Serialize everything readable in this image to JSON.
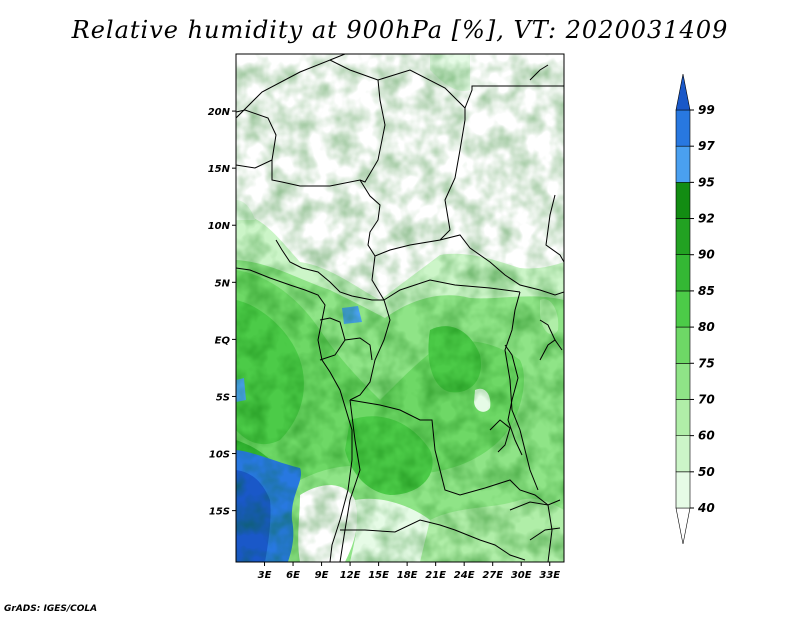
{
  "title": "Relative humidity at 900hPa [%], VT: 2020031409",
  "credit": "GrADS: IGES/COLA",
  "map": {
    "lat_labels": [
      {
        "label": "20N",
        "lat": 20
      },
      {
        "label": "15N",
        "lat": 15
      },
      {
        "label": "10N",
        "lat": 10
      },
      {
        "label": "5N",
        "lat": 5
      },
      {
        "label": "EQ",
        "lat": 0
      },
      {
        "label": "5S",
        "lat": -5
      },
      {
        "label": "10S",
        "lat": -10
      },
      {
        "label": "15S",
        "lat": -15
      }
    ],
    "lon_labels": [
      {
        "label": "3E",
        "lon": 3
      },
      {
        "label": "6E",
        "lon": 6
      },
      {
        "label": "9E",
        "lon": 9
      },
      {
        "label": "12E",
        "lon": 12
      },
      {
        "label": "15E",
        "lon": 15
      },
      {
        "label": "18E",
        "lon": 18
      },
      {
        "label": "21E",
        "lon": 21
      },
      {
        "label": "24E",
        "lon": 24
      },
      {
        "label": "27E",
        "lon": 27
      },
      {
        "label": "30E",
        "lon": 30
      },
      {
        "label": "33E",
        "lon": 33
      }
    ],
    "lon_range": [
      0,
      34.5
    ],
    "lat_range": [
      -19.5,
      25
    ]
  },
  "colorbar": {
    "levels": [
      "40",
      "50",
      "60",
      "70",
      "75",
      "80",
      "85",
      "90",
      "92",
      "95",
      "97",
      "99"
    ],
    "colors": [
      "#ffffff",
      "#e6fbe6",
      "#ccf5c8",
      "#b0eea8",
      "#8fe487",
      "#6ed866",
      "#4ccb48",
      "#34b834",
      "#22a222",
      "#128c12",
      "#4aa0f0",
      "#2878e0",
      "#1a58c8"
    ]
  }
}
